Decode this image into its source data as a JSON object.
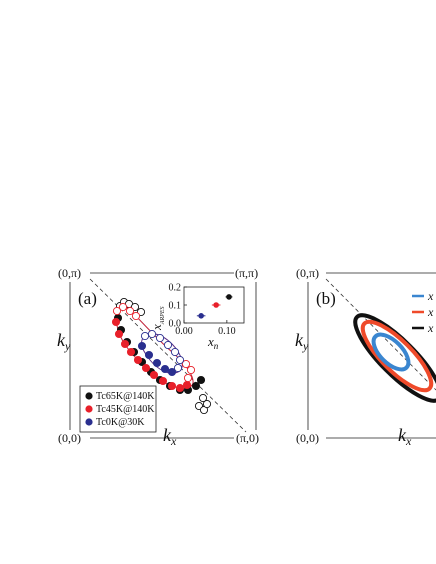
{
  "panel_a": {
    "letter": "(a)",
    "corners": {
      "top_left": "(0,π)",
      "top_right": "(π,π)",
      "bottom_left": "(0,0)",
      "bottom_right": "(π,0)"
    },
    "axis_x": "k",
    "axis_x_sub": "x",
    "axis_y": "k",
    "axis_y_sub": "y",
    "legend": [
      {
        "label": "Tc65K@140K",
        "color": "#111111"
      },
      {
        "label": "Tc45K@140K",
        "color": "#e8202a"
      },
      {
        "label": "Tc0K@30K",
        "color": "#2a2f8f"
      }
    ]
  },
  "panel_b": {
    "letter": "(b)",
    "corners": {
      "top_left": "(0,π)",
      "bottom_left": "(0,0)"
    },
    "axis_x": "k",
    "axis_x_sub": "x",
    "axis_y": "k",
    "axis_y_sub": "y",
    "legend": [
      {
        "label": "x",
        "color": "#3a86d0"
      },
      {
        "label": "x",
        "color": "#ef4a2a"
      },
      {
        "label": "x",
        "color": "#111111"
      }
    ]
  },
  "chart_data": {
    "type": "scatter",
    "xlabel": "x",
    "xlabel_sub": "n",
    "ylabel": "x",
    "ylabel_sub": "ARPES",
    "xlim": [
      0.0,
      0.14
    ],
    "ylim": [
      0.0,
      0.2
    ],
    "xticks": [
      "0.00",
      "0.10"
    ],
    "yticks": [
      "0.0",
      "0.1",
      "0.2"
    ],
    "points": [
      {
        "x": 0.04,
        "y": 0.04,
        "xerr": 0.01,
        "yerr": 0.008,
        "color": "#2a2f8f"
      },
      {
        "x": 0.075,
        "y": 0.1,
        "xerr": 0.01,
        "yerr": 0.012,
        "color": "#e8202a"
      },
      {
        "x": 0.105,
        "y": 0.145,
        "xerr": 0.008,
        "yerr": 0.013,
        "color": "#111111"
      }
    ]
  }
}
